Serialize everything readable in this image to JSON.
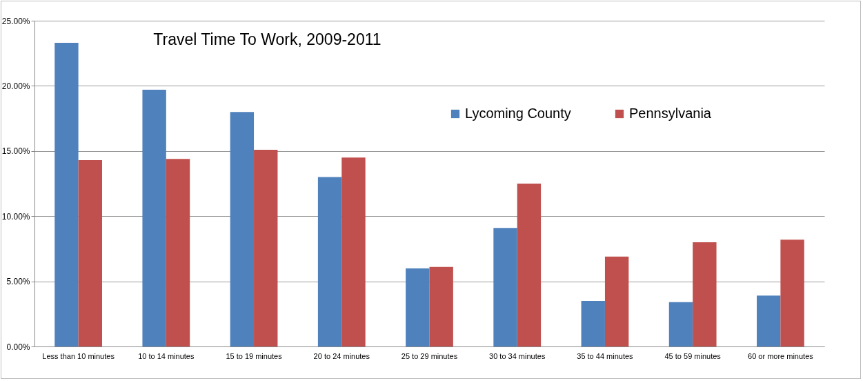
{
  "chart_data": {
    "type": "bar",
    "title": "Travel Time To Work, 2009-2011",
    "categories": [
      "Less than 10 minutes",
      "10 to 14 minutes",
      "15 to 19 minutes",
      "20 to 24 minutes",
      "25 to 29 minutes",
      "30 to 34 minutes",
      "35 to 44 minutes",
      "45 to 59 minutes",
      "60 or more minutes"
    ],
    "series": [
      {
        "name": "Lycoming County",
        "color": "#4f81bd",
        "values": [
          23.3,
          19.7,
          18.0,
          13.0,
          6.0,
          9.1,
          3.5,
          3.4,
          3.9
        ]
      },
      {
        "name": "Pennsylvania",
        "color": "#c0504d",
        "values": [
          14.3,
          14.4,
          15.1,
          14.5,
          6.1,
          12.5,
          6.9,
          8.0,
          8.2
        ]
      }
    ],
    "ylim": [
      0,
      25
    ],
    "yticks": [
      {
        "value": 0,
        "label": "0.00%"
      },
      {
        "value": 5,
        "label": "5.00%"
      },
      {
        "value": 10,
        "label": "10.00%"
      },
      {
        "value": 15,
        "label": "15.00%"
      },
      {
        "value": 20,
        "label": "20.00%"
      },
      {
        "value": 25,
        "label": "25.00%"
      }
    ],
    "grid": "y",
    "legend": "top right"
  }
}
